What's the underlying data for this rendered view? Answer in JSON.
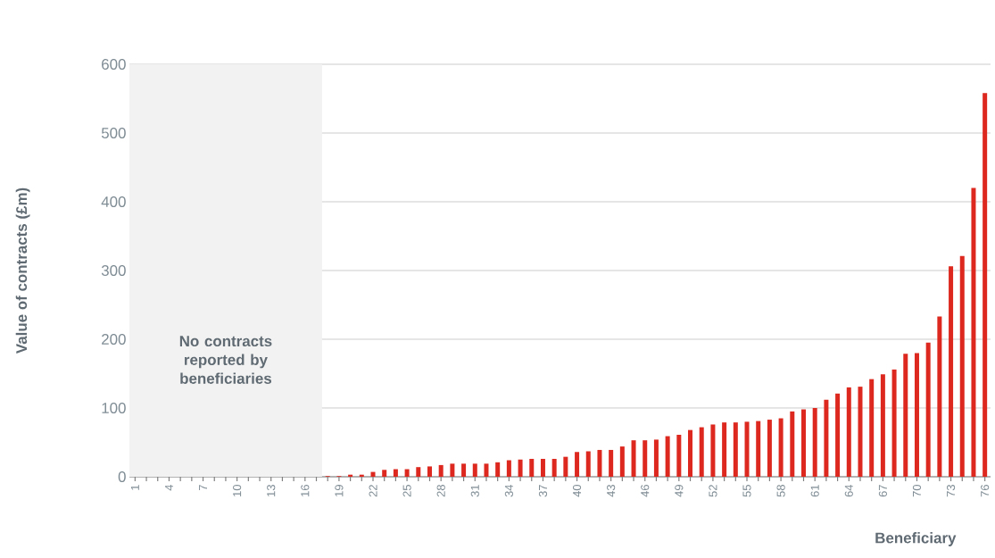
{
  "chart_data": {
    "type": "bar",
    "xlabel": "Beneficiary",
    "ylabel": "Value of contracts (£m)",
    "x": [
      18,
      19,
      20,
      21,
      22,
      23,
      24,
      25,
      26,
      27,
      28,
      29,
      30,
      31,
      32,
      33,
      34,
      35,
      36,
      37,
      38,
      39,
      40,
      41,
      42,
      43,
      44,
      45,
      46,
      47,
      48,
      49,
      50,
      51,
      52,
      53,
      54,
      55,
      56,
      57,
      58,
      59,
      60,
      61,
      62,
      63,
      64,
      65,
      66,
      67,
      68,
      69,
      70,
      71,
      72,
      73,
      74,
      75,
      76
    ],
    "values": [
      1,
      1,
      3,
      3,
      7,
      10,
      11,
      11,
      14,
      15,
      17,
      19,
      19,
      19,
      19,
      21,
      24,
      25,
      26,
      26,
      26,
      29,
      36,
      37,
      39,
      39,
      44,
      53,
      53,
      54,
      59,
      61,
      68,
      72,
      76,
      79,
      79,
      80,
      81,
      83,
      85,
      95,
      98,
      100,
      112,
      121,
      130,
      131,
      142,
      149,
      156,
      179,
      180,
      195,
      233,
      306,
      321,
      420,
      558
    ],
    "color": "#dc281e",
    "xlim": [
      0.5,
      76.5
    ],
    "xticks": [
      1,
      {
        "value": 2,
        "label": null
      },
      {
        "value": 3,
        "label": null
      },
      4,
      {
        "value": 5,
        "label": null
      },
      {
        "value": 6,
        "label": null
      },
      7,
      {
        "value": 8,
        "label": null
      },
      {
        "value": 9,
        "label": null
      },
      10,
      {
        "value": 11,
        "label": null
      },
      {
        "value": 12,
        "label": null
      },
      13,
      {
        "value": 14,
        "label": null
      },
      {
        "value": 15,
        "label": null
      },
      16,
      {
        "value": 17,
        "label": null
      },
      {
        "value": 18,
        "label": null
      },
      19,
      {
        "value": 20,
        "label": null
      },
      {
        "value": 21,
        "label": null
      },
      22,
      {
        "value": 23,
        "label": null
      },
      {
        "value": 24,
        "label": null
      },
      25,
      {
        "value": 26,
        "label": null
      },
      {
        "value": 27,
        "label": null
      },
      28,
      {
        "value": 29,
        "label": null
      },
      {
        "value": 30,
        "label": null
      },
      31,
      {
        "value": 32,
        "label": null
      },
      {
        "value": 33,
        "label": null
      },
      34,
      {
        "value": 35,
        "label": null
      },
      {
        "value": 36,
        "label": null
      },
      37,
      {
        "value": 38,
        "label": null
      },
      {
        "value": 39,
        "label": null
      },
      40,
      {
        "value": 41,
        "label": null
      },
      {
        "value": 42,
        "label": null
      },
      43,
      {
        "value": 44,
        "label": null
      },
      {
        "value": 45,
        "label": null
      },
      46,
      {
        "value": 47,
        "label": null
      },
      {
        "value": 48,
        "label": null
      },
      49,
      {
        "value": 50,
        "label": null
      },
      {
        "value": 51,
        "label": null
      },
      52,
      {
        "value": 53,
        "label": null
      },
      {
        "value": 54,
        "label": null
      },
      55,
      {
        "value": 56,
        "label": null
      },
      {
        "value": 57,
        "label": null
      },
      58,
      {
        "value": 59,
        "label": null
      },
      {
        "value": 60,
        "label": null
      },
      61,
      {
        "value": 62,
        "label": null
      },
      {
        "value": 63,
        "label": null
      },
      64,
      {
        "value": 65,
        "label": null
      },
      {
        "value": 66,
        "label": null
      },
      67,
      {
        "value": 68,
        "label": null
      },
      {
        "value": 69,
        "label": null
      },
      70,
      {
        "value": 71,
        "label": null
      },
      {
        "value": 72,
        "label": null
      },
      73,
      {
        "value": 74,
        "label": null
      },
      {
        "value": 75,
        "label": null
      },
      76
    ],
    "ylim": [
      0,
      600
    ],
    "yticks": [
      0,
      100,
      200,
      300,
      400,
      500,
      600
    ],
    "grid": "y",
    "bands": [
      {
        "axis": "x",
        "from": 0.5,
        "to": 17.5,
        "label": "No contracts reported by beneficiaries",
        "color": "#f2f2f2"
      }
    ]
  }
}
